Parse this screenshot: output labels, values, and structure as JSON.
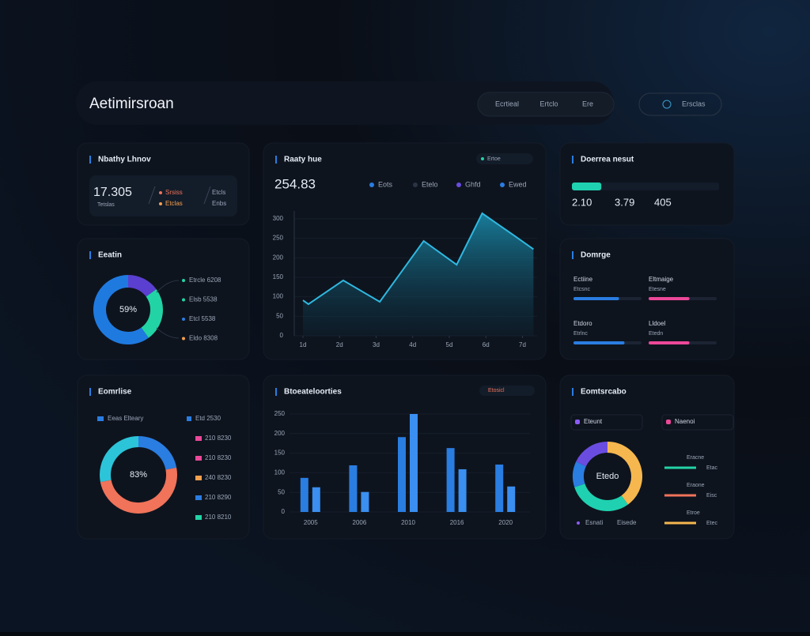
{
  "header": {
    "title": "Aetimirsroan",
    "nav": [
      "Ecrtieal",
      "Ertclo",
      "Ere"
    ],
    "button": "Ersclas"
  },
  "summary": {
    "title": "Nbathy Lhnov",
    "value": "17.305",
    "note": "Tetslas",
    "items": [
      "Srsiss",
      "Etclas"
    ],
    "side": [
      "Etcls",
      "Enbs"
    ]
  },
  "share": {
    "title": "Eeatin",
    "center": "59%",
    "values": [
      15,
      25,
      60
    ],
    "colors": [
      "#5b3fd0",
      "#22d3a6",
      "#1f7ae0"
    ],
    "legend": [
      "Etrcle 6208",
      "Elsb 5538",
      "Etcl 5538",
      "Eldo 8308"
    ],
    "legend_colors": [
      "#22d3a6",
      "#22d3a6",
      "#2a7de1",
      "#f5a04e"
    ]
  },
  "source": {
    "title": "Eomrlise",
    "center": "83%",
    "values": [
      22,
      50,
      28
    ],
    "colors": [
      "#2a7de1",
      "#f0735a",
      "#2cc4d8"
    ],
    "legend": [
      "Eeas Elteary",
      "Etd 2530"
    ],
    "rows": [
      "210 8230",
      "210 8230",
      "240 8230",
      "210 8290",
      "210 8210"
    ],
    "row_colors": [
      "#ec4899",
      "#ec4899",
      "#f5a04e",
      "#2a7de1",
      "#22d3a6"
    ]
  },
  "trend": {
    "title": "Raaty hue",
    "value": "254.83",
    "toggle": "Ertoe",
    "series": [
      {
        "name": "Eots",
        "color": "#2a7de1"
      },
      {
        "name": "Etelo",
        "color": "#2b3446"
      },
      {
        "name": "Ghfd",
        "color": "#6a4de0"
      },
      {
        "name": "Ewed",
        "color": "#2a7de1"
      }
    ],
    "x": [
      0,
      0.15,
      1.1,
      2.1,
      3.3,
      4.2,
      4.9,
      5.8,
      6.3
    ],
    "values": [
      91,
      81,
      142,
      87,
      243,
      182,
      314,
      255,
      222
    ],
    "color": "#2fb8e0",
    "xlim": [
      0,
      6.4
    ],
    "ylim": [
      0,
      320
    ],
    "yticks": [
      0,
      50,
      100,
      150,
      200,
      250,
      300
    ],
    "xticks": [
      {
        "value": 0,
        "label": "1d"
      },
      {
        "value": 1,
        "label": "2d"
      },
      {
        "value": 2,
        "label": "3d"
      },
      {
        "value": 3,
        "label": "4d"
      },
      {
        "value": 4,
        "label": "5d"
      },
      {
        "value": 5,
        "label": "6d"
      },
      {
        "value": 6,
        "label": "7d"
      }
    ]
  },
  "volume": {
    "title": "Btoeateloorties",
    "toggle": "Etosicl",
    "categories": [
      "2005",
      "2006",
      "2010",
      "2016",
      "2020"
    ],
    "series": [
      {
        "color": "#2a7de1",
        "values": [
          87,
          119,
          191,
          163,
          121
        ]
      },
      {
        "color": "#3a8ff0",
        "values": [
          63,
          51,
          250,
          109,
          65
        ]
      }
    ],
    "ylim": [
      0,
      250
    ],
    "yticks": [
      0,
      50,
      100,
      150,
      200,
      250
    ]
  },
  "result": {
    "title": "Doerrea nesut",
    "progress": 20,
    "values": [
      "2.10",
      "3.79",
      "405"
    ]
  },
  "ranges": {
    "title": "Domrge",
    "items": [
      {
        "label": "Ectiine",
        "sub": "Etcsnc",
        "value": 67,
        "color": "#2a7de1"
      },
      {
        "label": "Eltmaige",
        "sub": "Etesne",
        "value": 60,
        "color": "#ec4899"
      },
      {
        "label": "Etdoro",
        "sub": "Etrlnc",
        "value": 75,
        "color": "#2a7de1"
      },
      {
        "label": "Lldoel",
        "sub": "Etedn",
        "value": 60,
        "color": "#ec4899"
      }
    ]
  },
  "split": {
    "title": "Eomtsrcabo",
    "chips": [
      {
        "label": "Eteunt",
        "color": "#8b5cf6"
      },
      {
        "label": "Naenoi",
        "color": "#ec4899"
      }
    ],
    "center": "Etedo",
    "values": [
      40,
      30,
      12,
      18
    ],
    "colors": [
      "#f5b74e",
      "#1fd1b0",
      "#2a7de1",
      "#6a4de0"
    ],
    "lines": [
      {
        "label": "Eracne",
        "value": "Etac",
        "color": "#22d3a6"
      },
      {
        "label": "Eraone",
        "value": "Eisc",
        "color": "#f0735a"
      },
      {
        "label": "Etroe",
        "value": "Etec",
        "color": "#f5b74e"
      }
    ],
    "legend": [
      "Esnati",
      "Eisede"
    ]
  }
}
